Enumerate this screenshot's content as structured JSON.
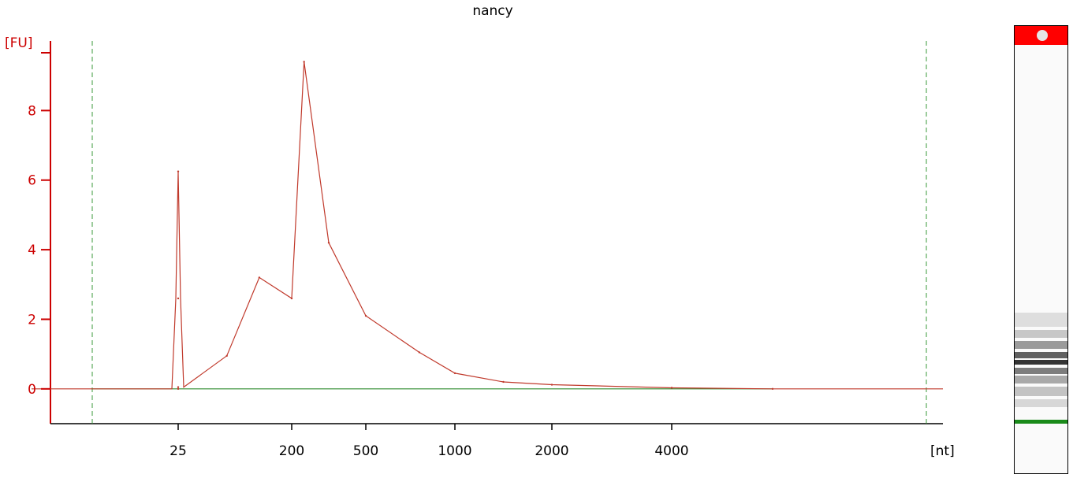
{
  "chart_data": {
    "type": "line",
    "title": "nancy",
    "ylabel": "[FU]",
    "xlabel": "[nt]",
    "ylim": [
      -1,
      10
    ],
    "y_ticks": [
      0,
      2,
      4,
      6,
      8
    ],
    "x_ticks": [
      "25",
      "200",
      "500",
      "1000",
      "2000",
      "4000"
    ],
    "series": [
      {
        "color": "#c0392b",
        "x": [
          25,
          25,
          25,
          25,
          100,
          150,
          200,
          250,
          350,
          500,
          800,
          1000,
          1500,
          2000,
          4000,
          5000
        ],
        "y": [
          0.0,
          2.6,
          6.25,
          0.05,
          0.95,
          3.2,
          2.6,
          9.4,
          4.2,
          2.1,
          1.05,
          0.45,
          0.2,
          0.12,
          0.03,
          0.0
        ]
      },
      {
        "color": "#2e8b2e",
        "x": [
          25,
          5000
        ],
        "y": [
          0.0,
          0.0
        ]
      }
    ],
    "grid": false,
    "legend": "none",
    "axis_color": "#cc0000",
    "marker_line_color": "#3a9a3a"
  },
  "gel": {
    "top_marker_color": "#ff0000",
    "bottom_marker_color": "#1a8a1a"
  }
}
